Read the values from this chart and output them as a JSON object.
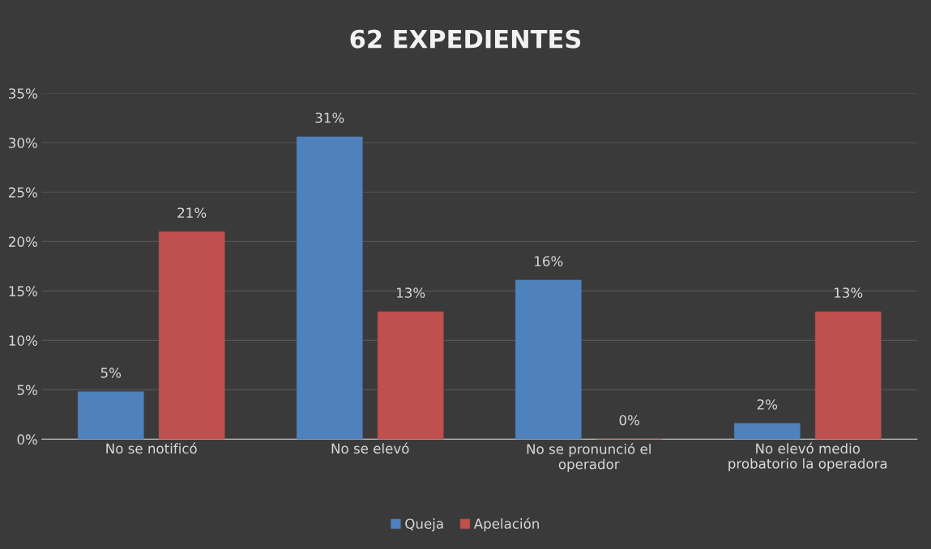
{
  "chart_data": {
    "type": "bar",
    "title": "62 EXPEDIENTES",
    "categories": [
      "No se notificó",
      "No se elevó",
      "No se pronunció el\noperador",
      "No elevó medio\nprobatorio la operadora"
    ],
    "series": [
      {
        "name": "Queja",
        "color": "#4f81bd",
        "values": [
          4.8,
          30.6,
          16.1,
          1.6
        ],
        "value_labels": [
          "5%",
          "31%",
          "16%",
          "2%"
        ]
      },
      {
        "name": "Apelación",
        "color": "#c0504d",
        "values": [
          21.0,
          12.9,
          0,
          12.9
        ],
        "value_labels": [
          "21%",
          "13%",
          "0%",
          "13%"
        ]
      }
    ],
    "ylim": [
      0,
      35
    ],
    "yticks": [
      {
        "value": 0,
        "label": "0%"
      },
      {
        "value": 5,
        "label": "5%"
      },
      {
        "value": 10,
        "label": "10%"
      },
      {
        "value": 15,
        "label": "15%"
      },
      {
        "value": 20,
        "label": "20%"
      },
      {
        "value": 25,
        "label": "25%"
      },
      {
        "value": 30,
        "label": "30%"
      },
      {
        "value": 35,
        "label": "35%"
      }
    ],
    "grid": "y",
    "legend": "bottom"
  }
}
